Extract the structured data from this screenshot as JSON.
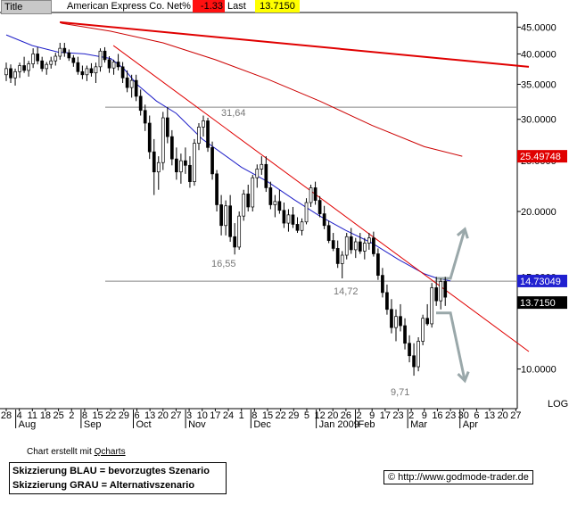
{
  "header": {
    "title_label": "Title",
    "instrument": "American Express Co.",
    "netpct_label": "Net%",
    "netpct_value": "-1.33",
    "last_label": "Last",
    "last_value": "13.7150"
  },
  "chart_data": {
    "type": "candlestick",
    "title": "American Express Co.",
    "y_scale": "log",
    "ylim": [
      8.4,
      48.0
    ],
    "y_ticks": [
      {
        "v": 45,
        "label": "45.0000"
      },
      {
        "v": 40,
        "label": "40.0000"
      },
      {
        "v": 35,
        "label": "35.0000"
      },
      {
        "v": 30,
        "label": "30.0000"
      },
      {
        "v": 25,
        "label": "25.0000"
      },
      {
        "v": 20,
        "label": "20.0000"
      },
      {
        "v": 15,
        "label": "15.0000"
      },
      {
        "v": 10,
        "label": "10.0000"
      }
    ],
    "scale_label": "LOG",
    "x_day_labels": [
      "28",
      "4",
      "11",
      "18",
      "25",
      "2",
      "8",
      "15",
      "22",
      "29",
      "6",
      "13",
      "20",
      "27",
      "3",
      "10",
      "17",
      "24",
      "1",
      "8",
      "15",
      "22",
      "29",
      "5",
      "12",
      "20",
      "26",
      "2",
      "9",
      "17",
      "23",
      "2",
      "9",
      "16",
      "23",
      "30",
      "6",
      "13",
      "20",
      "27"
    ],
    "x_month_labels": [
      {
        "label": "Aug",
        "i": 1
      },
      {
        "label": "Sep",
        "i": 6
      },
      {
        "label": "Oct",
        "i": 10
      },
      {
        "label": "Nov",
        "i": 14
      },
      {
        "label": "Dec",
        "i": 19
      },
      {
        "label": "Jan 2009",
        "i": 24
      },
      {
        "label": "Feb",
        "i": 27
      },
      {
        "label": "Mar",
        "i": 31
      },
      {
        "label": "Apr",
        "i": 35
      }
    ],
    "price_labels": [
      {
        "label": "31,64",
        "v": 31.64,
        "i": 17
      },
      {
        "label": "16,55",
        "v": 16.55,
        "i": 17
      },
      {
        "label": "14,72",
        "v": 14.72,
        "i": 27
      },
      {
        "label": "9,71",
        "v": 9.71,
        "i": 31
      }
    ],
    "value_tags": [
      {
        "label": "25.49748",
        "v": 25.49748,
        "color": "#e00000"
      },
      {
        "label": "14.73049",
        "v": 14.73049,
        "color": "#2020d0"
      },
      {
        "label": "13.7150",
        "v": 13.715,
        "color": "#000000"
      }
    ],
    "horizontal_lines": [
      31.64,
      14.72
    ],
    "trendlines": [
      {
        "color": "#e00000",
        "from": {
          "i": 4.1,
          "v": 46.0
        },
        "to": {
          "i": 40.0,
          "v": 37.8
        }
      },
      {
        "color": "#e00000",
        "from": {
          "i": 8.2,
          "v": 41.5
        },
        "to": {
          "i": 40.0,
          "v": 10.8
        }
      }
    ],
    "ma200": [
      [
        4.2,
        45.8
      ],
      [
        8,
        44.2
      ],
      [
        12,
        42
      ],
      [
        16,
        39
      ],
      [
        20,
        35.8
      ],
      [
        24,
        32.5
      ],
      [
        28,
        29.2
      ],
      [
        32,
        26.6
      ],
      [
        34.9,
        25.5
      ]
    ],
    "ma50": [
      [
        0,
        43.5
      ],
      [
        2,
        41.5
      ],
      [
        4,
        40.3
      ],
      [
        6,
        40
      ],
      [
        8,
        39.2
      ],
      [
        9,
        37.5
      ],
      [
        10,
        35
      ],
      [
        11.5,
        32.5
      ],
      [
        13,
        30.8
      ],
      [
        15,
        27.5
      ],
      [
        18,
        24.3
      ],
      [
        20,
        22.8
      ],
      [
        22,
        21.1
      ],
      [
        24,
        19.6
      ],
      [
        26,
        18.4
      ],
      [
        28,
        17.4
      ],
      [
        30,
        16.2
      ],
      [
        32,
        15.2
      ],
      [
        33,
        14.9
      ],
      [
        34,
        14.73
      ]
    ],
    "scenarios": [
      {
        "name": "blue",
        "color": "#9aa8aa",
        "points": [
          [
            32.9,
            14.9
          ],
          [
            34,
            14.9
          ],
          [
            35.1,
            18.5
          ]
        ],
        "arrow": "up"
      },
      {
        "name": "grey",
        "color": "#9aa8aa",
        "points": [
          [
            32.9,
            12.8
          ],
          [
            34,
            12.8
          ],
          [
            35.1,
            9.5
          ]
        ],
        "arrow": "down"
      }
    ],
    "candles": [
      [
        36.5,
        38.5,
        35.5,
        37.5
      ],
      [
        37.5,
        38.2,
        35.2,
        36
      ],
      [
        36,
        37.5,
        34.8,
        37
      ],
      [
        37,
        38.5,
        36,
        38
      ],
      [
        38,
        39.5,
        36.8,
        37.2
      ],
      [
        37.2,
        38.8,
        36.2,
        38.3
      ],
      [
        38.3,
        41,
        37.6,
        40
      ],
      [
        40,
        41.2,
        38.2,
        38.8
      ],
      [
        38.8,
        39.5,
        37,
        37.5
      ],
      [
        37.5,
        38.6,
        36.5,
        38.2
      ],
      [
        38.2,
        39.5,
        37.5,
        38.8
      ],
      [
        38.8,
        40.2,
        38,
        39.6
      ],
      [
        39.6,
        42,
        39,
        41
      ],
      [
        41,
        42,
        39.5,
        40.2
      ],
      [
        40.2,
        40.8,
        38.8,
        39.3
      ],
      [
        39.3,
        39.8,
        37.8,
        38.5
      ],
      [
        38.5,
        39.5,
        36.5,
        37
      ],
      [
        37,
        38,
        35.8,
        36.5
      ],
      [
        36.5,
        38,
        35.5,
        37.5
      ],
      [
        37.5,
        38.4,
        36.2,
        36.8
      ],
      [
        36.8,
        38.5,
        35.2,
        37.8
      ],
      [
        37.8,
        41,
        37,
        40.5
      ],
      [
        40.5,
        41.2,
        38.5,
        39
      ],
      [
        39,
        39.6,
        36.8,
        37.6
      ],
      [
        37.6,
        39,
        36.5,
        38.6
      ],
      [
        38.6,
        40,
        37.2,
        37.8
      ],
      [
        37.8,
        38.6,
        35.2,
        36
      ],
      [
        36,
        37.2,
        33.8,
        34.5
      ],
      [
        34.5,
        36.5,
        33,
        35.6
      ],
      [
        35.6,
        36.5,
        32.5,
        33.2
      ],
      [
        33.2,
        34.2,
        30.5,
        31.2
      ],
      [
        31.2,
        32,
        28.5,
        29.5
      ],
      [
        29.5,
        30.5,
        25.2,
        26
      ],
      [
        26,
        27.5,
        21.5,
        23.8
      ],
      [
        23.8,
        25.5,
        22,
        24.8
      ],
      [
        24.8,
        31,
        24,
        30.2
      ],
      [
        30.2,
        31.64,
        27,
        27.8
      ],
      [
        27.8,
        28.6,
        24.5,
        25.2
      ],
      [
        25.2,
        26.5,
        23,
        23.8
      ],
      [
        23.8,
        25.8,
        22.6,
        25
      ],
      [
        25,
        26.5,
        23.6,
        24.5
      ],
      [
        24.5,
        25.5,
        22.2,
        22.8
      ],
      [
        22.8,
        27.5,
        22.4,
        27
      ],
      [
        27,
        29.5,
        26.2,
        29
      ],
      [
        29,
        30.5,
        27.8,
        29.8
      ],
      [
        29.8,
        30.2,
        26,
        26.5
      ],
      [
        26.5,
        27.2,
        23,
        23.6
      ],
      [
        23.6,
        24,
        20,
        20.6
      ],
      [
        20.6,
        21.5,
        18,
        18.8
      ],
      [
        18.8,
        21,
        18,
        20.5
      ],
      [
        20.5,
        21.5,
        17.5,
        17.9
      ],
      [
        17.9,
        19,
        16.55,
        17.1
      ],
      [
        17.1,
        20,
        16.9,
        19.6
      ],
      [
        19.6,
        22,
        19.2,
        21.6
      ],
      [
        21.6,
        22.5,
        20,
        20.4
      ],
      [
        20.4,
        23.5,
        20,
        23.2
      ],
      [
        23.2,
        24.6,
        22.2,
        24.1
      ],
      [
        24.1,
        25.5,
        23.5,
        24.6
      ],
      [
        24.6,
        25.5,
        21.8,
        22.2
      ],
      [
        22.2,
        22.8,
        20.2,
        20.6
      ],
      [
        20.6,
        21.5,
        19.5,
        20.9
      ],
      [
        20.9,
        22,
        19.8,
        20.1
      ],
      [
        20.1,
        20.8,
        18.6,
        19
      ],
      [
        19,
        20.2,
        18.3,
        19.7
      ],
      [
        19.7,
        20.4,
        18.6,
        18.9
      ],
      [
        18.9,
        19.5,
        18.2,
        18.4
      ],
      [
        18.4,
        19.4,
        18,
        19.1
      ],
      [
        19.1,
        21.2,
        18.9,
        20.8
      ],
      [
        20.8,
        22.5,
        20.4,
        22.2
      ],
      [
        22.2,
        22.8,
        20.6,
        21
      ],
      [
        21,
        21.4,
        19.5,
        19.8
      ],
      [
        19.8,
        20.5,
        18.5,
        18.8
      ],
      [
        18.8,
        19.2,
        17.4,
        17.6
      ],
      [
        17.6,
        18.2,
        16.8,
        17
      ],
      [
        17,
        17.6,
        15.6,
        15.9
      ],
      [
        15.9,
        16.8,
        14.9,
        16.5
      ],
      [
        16.5,
        18.2,
        16.2,
        17.9
      ],
      [
        17.9,
        18.6,
        16.6,
        16.9
      ],
      [
        16.9,
        17.8,
        16.3,
        17.5
      ],
      [
        17.5,
        18.2,
        16.6,
        16.8
      ],
      [
        16.8,
        17.8,
        16.2,
        17.4
      ],
      [
        17.4,
        18.2,
        16.9,
        17.8
      ],
      [
        17.8,
        18.3,
        16.4,
        16.6
      ],
      [
        16.6,
        17,
        14.8,
        15.1
      ],
      [
        15.1,
        15.6,
        13.7,
        14
      ],
      [
        14,
        14.5,
        12.7,
        13
      ],
      [
        13,
        13.6,
        11.7,
        12
      ],
      [
        12,
        13,
        11.3,
        12.6
      ],
      [
        12.6,
        13.3,
        11.8,
        12.1
      ],
      [
        12.1,
        12.5,
        10.9,
        11.2
      ],
      [
        11.2,
        11.6,
        10.3,
        10.6
      ],
      [
        10.6,
        11.2,
        9.71,
        10.1
      ],
      [
        10.1,
        11.5,
        9.9,
        11.3
      ],
      [
        11.3,
        12.7,
        11.1,
        12.5
      ],
      [
        12.5,
        13.3,
        12.1,
        12.2
      ],
      [
        12.2,
        14.6,
        12,
        14.3
      ],
      [
        14.3,
        15,
        13.2,
        13.5
      ],
      [
        13.5,
        14.9,
        13,
        14.7
      ],
      [
        14.7,
        15,
        13.2,
        13.715
      ]
    ],
    "candle_x_start": 0.0,
    "candle_x_end": 33.6
  },
  "footer": {
    "credit_prefix": "Chart erstellt mit ",
    "credit_link": "Qcharts",
    "legend_blue": "Skizzierung BLAU = bevorzugtes Szenario",
    "legend_grey": "Skizzierung GRAU = Alternativszenario",
    "copyright_symbol": "©",
    "site": "http://www.godmode-trader.de"
  }
}
